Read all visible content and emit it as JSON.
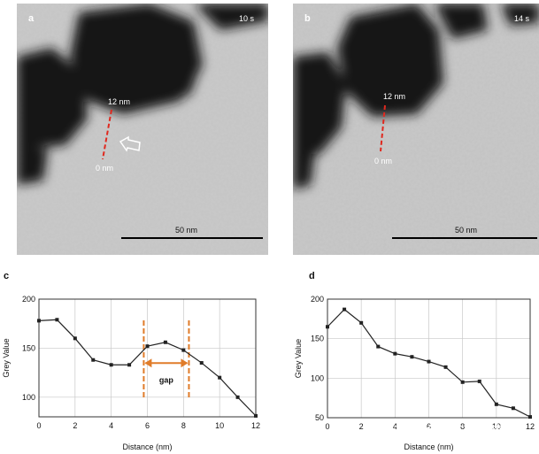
{
  "panels": {
    "a": {
      "letter": "a",
      "time": "10 s",
      "scale_label": "50 nm",
      "marker_top": "12 nm",
      "marker_bottom": "0 nm"
    },
    "b": {
      "letter": "b",
      "time": "14 s",
      "scale_label": "50 nm",
      "marker_top": "12 nm",
      "marker_bottom": "0 nm"
    },
    "c": {
      "letter": "c"
    },
    "d": {
      "letter": "d"
    }
  },
  "watermark": "知乎 @金鉴实验室李工",
  "colors": {
    "line": "#222222",
    "grid": "#c8c8c8",
    "gap": "#e07c2a",
    "marker": "#e0281e"
  },
  "chart_data": [
    {
      "type": "line",
      "panel": "c",
      "xlabel": "Distance (nm)",
      "ylabel": "Grey Value",
      "xlim": [
        0,
        12
      ],
      "ylim": [
        80,
        200
      ],
      "xticks": [
        0,
        2,
        4,
        6,
        8,
        10,
        12
      ],
      "yticks": [
        100,
        150,
        200
      ],
      "grid": true,
      "x": [
        0,
        1,
        2,
        3,
        4,
        5,
        6,
        7,
        8,
        9,
        10,
        11,
        12
      ],
      "y": [
        178,
        179,
        160,
        138,
        133,
        133,
        152,
        156,
        148,
        135,
        120,
        100,
        81
      ],
      "annotation": {
        "label": "gap",
        "x_start": 5.8,
        "x_end": 8.3
      }
    },
    {
      "type": "line",
      "panel": "d",
      "xlabel": "Distance (nm)",
      "ylabel": "Grey Value",
      "xlim": [
        0,
        12
      ],
      "ylim": [
        50,
        200
      ],
      "xticks": [
        0,
        2,
        4,
        6,
        8,
        10,
        12
      ],
      "yticks": [
        50,
        100,
        150,
        200
      ],
      "grid": true,
      "x": [
        0,
        1,
        2,
        3,
        4,
        5,
        6,
        7,
        8,
        9,
        10,
        11,
        12
      ],
      "y": [
        165,
        187,
        170,
        140,
        131,
        127,
        121,
        114,
        95,
        96,
        67,
        62,
        51
      ]
    }
  ]
}
